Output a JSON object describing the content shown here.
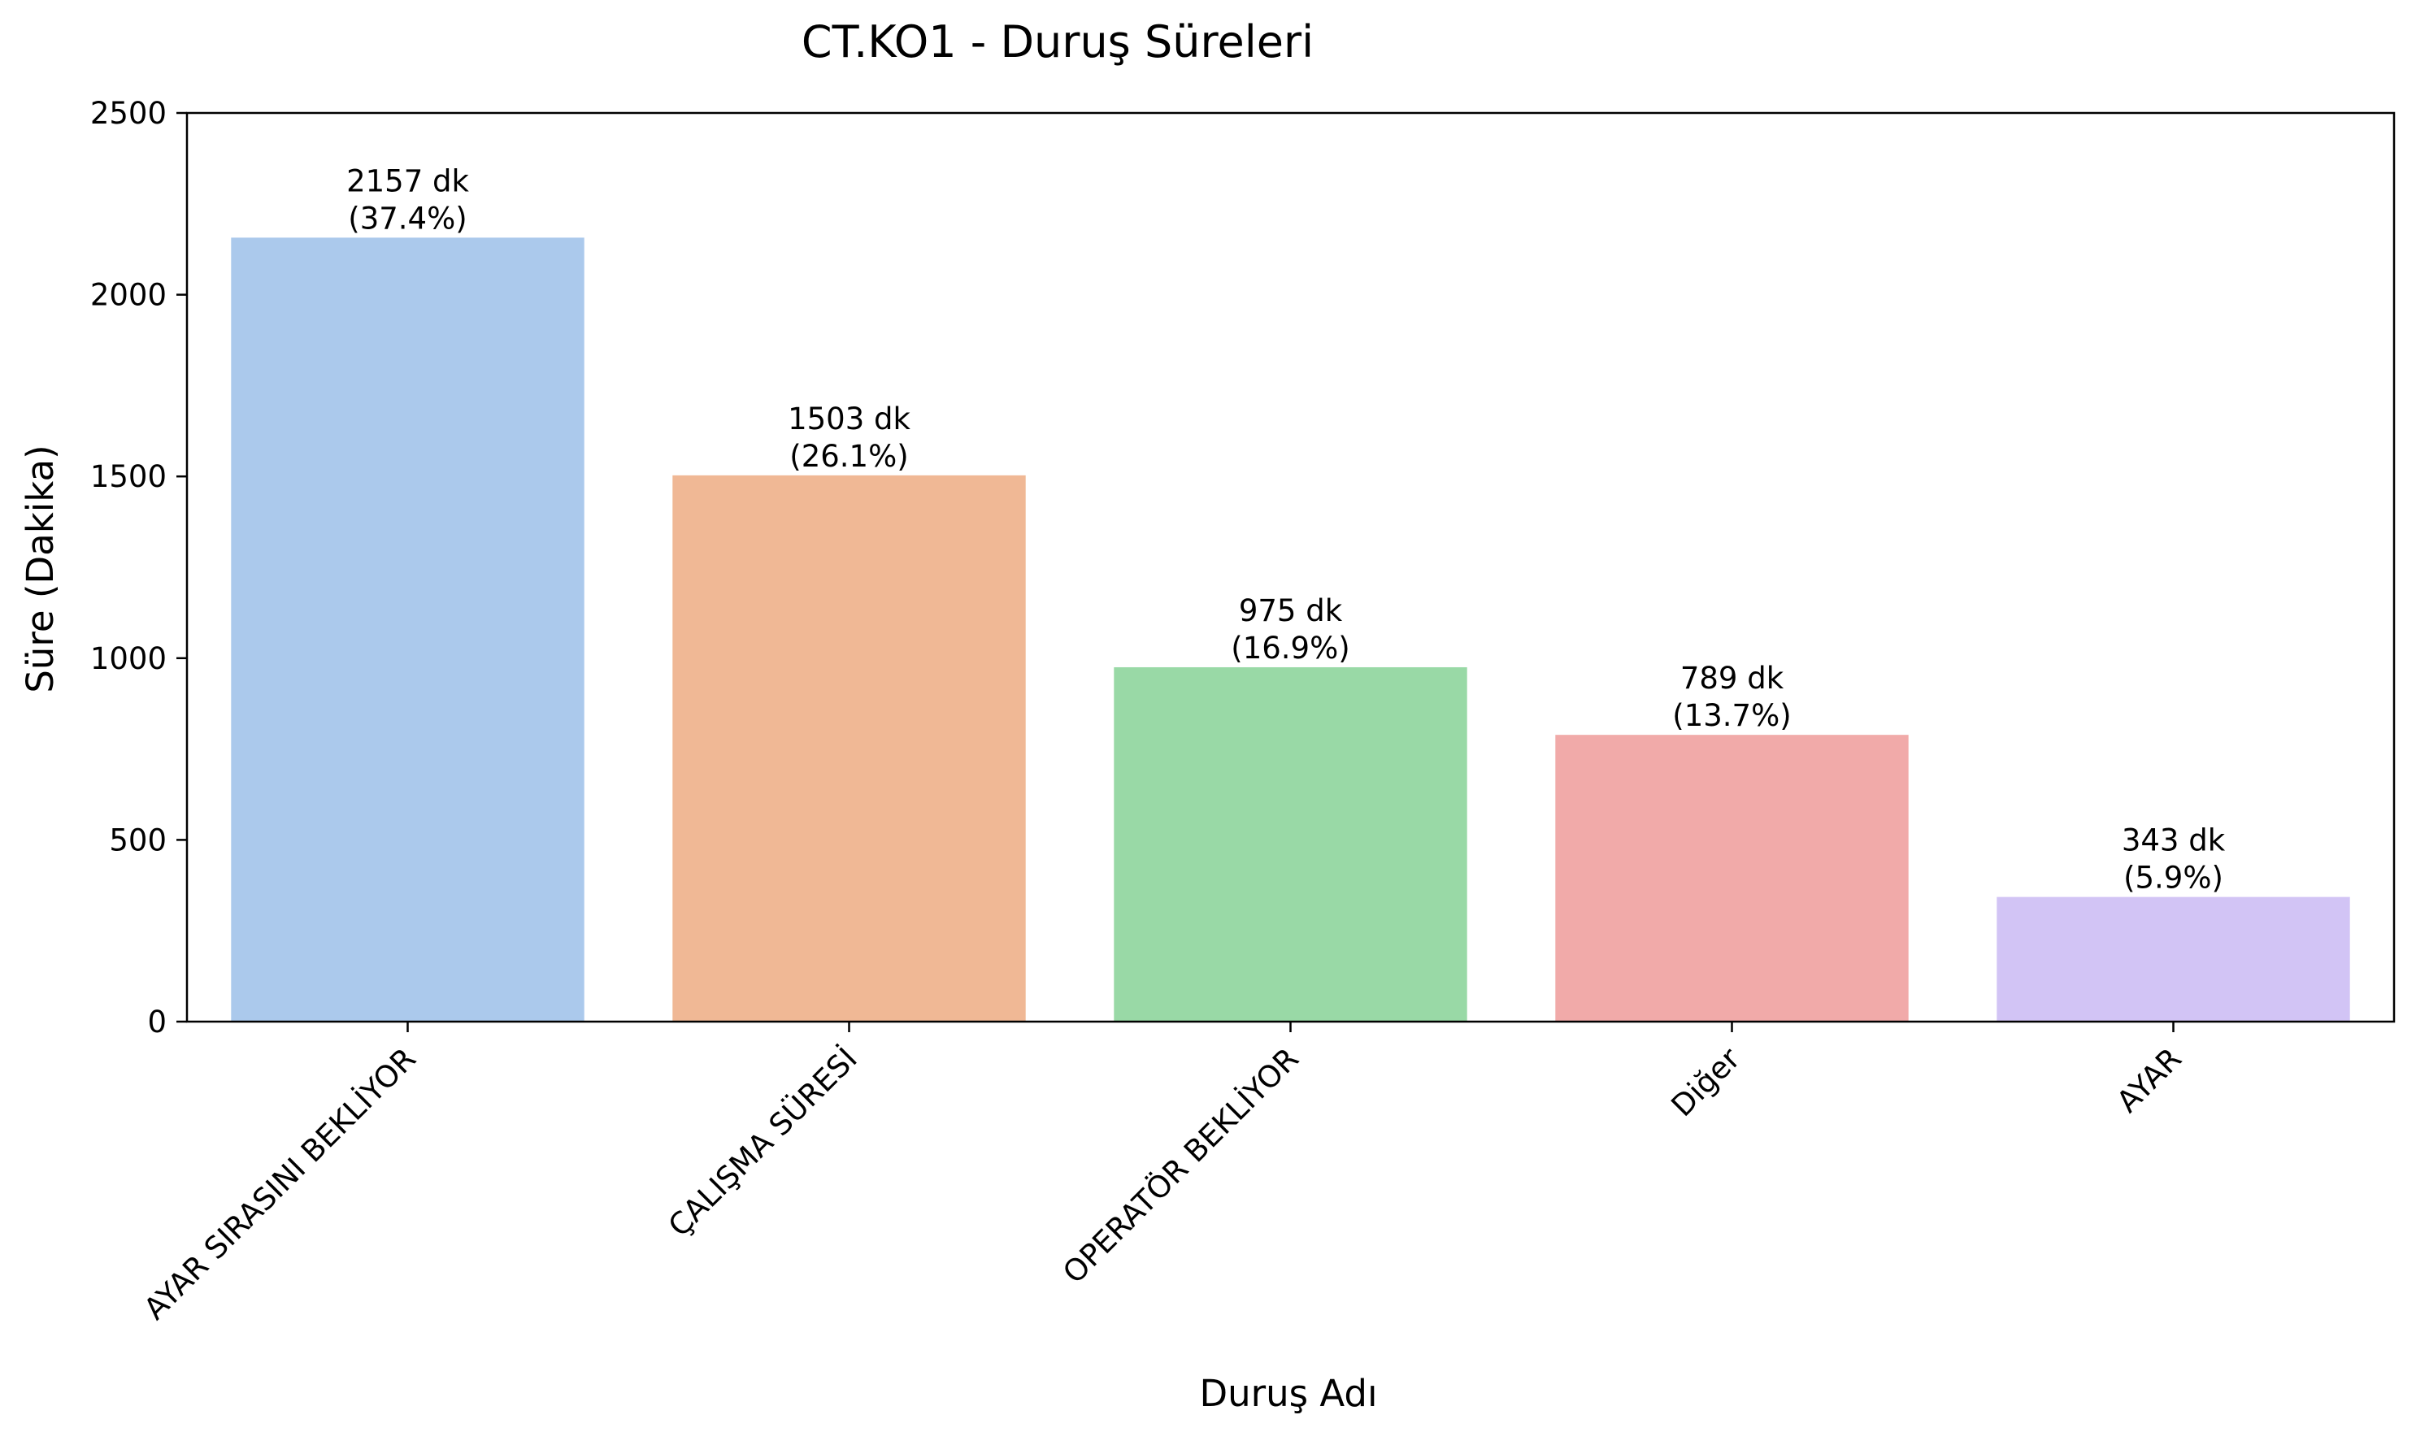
{
  "chart_data": {
    "type": "bar",
    "title": "CT.KO1 - Duruş Süreleri",
    "xlabel": "Duruş Adı",
    "ylabel": "Süre (Dakika)",
    "categories": [
      "AYAR SIRASINI BEKLİYOR",
      "ÇALIŞMA SÜRESİ",
      "OPERATÖR BEKLİYOR",
      "Diğer",
      "AYAR"
    ],
    "values": [
      2157,
      1503,
      975,
      789,
      343
    ],
    "data_labels": [
      [
        "2157 dk",
        "(37.4%)"
      ],
      [
        "1503 dk",
        "(26.1%)"
      ],
      [
        "975 dk",
        "(16.9%)"
      ],
      [
        "789 dk",
        "(13.7%)"
      ],
      [
        "343 dk",
        "(5.9%)"
      ]
    ],
    "colors": [
      "#abc9ec",
      "#f0b895",
      "#99d9a6",
      "#f1aaa9",
      "#d2c4f5"
    ],
    "ylim": [
      0,
      2500
    ],
    "yticks": [
      0,
      500,
      1000,
      1500,
      2000,
      2500
    ],
    "grid": false,
    "legend": "none"
  }
}
